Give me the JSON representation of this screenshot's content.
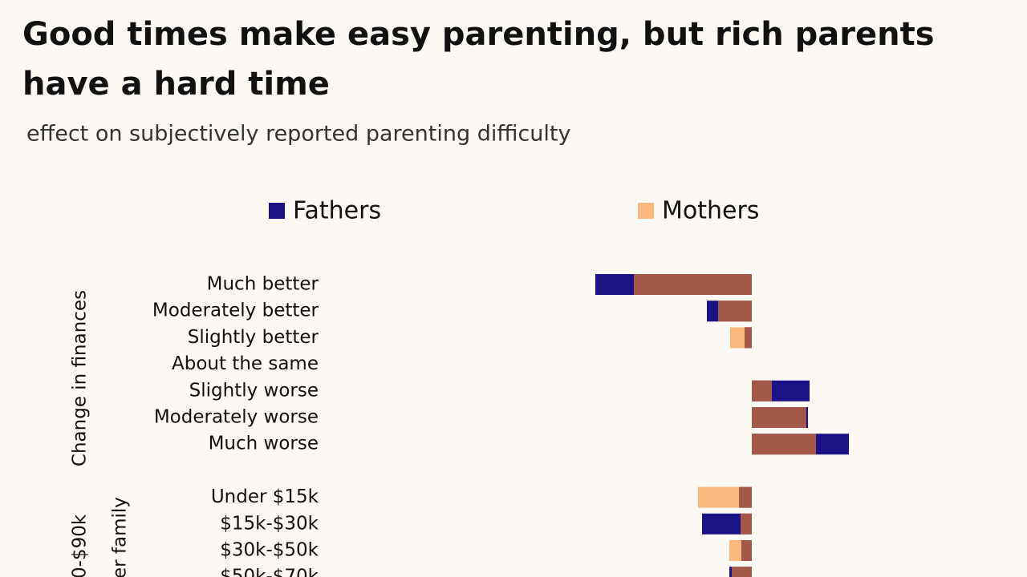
{
  "chart_data": {
    "type": "bar",
    "orientation": "horizontal",
    "title": "Good times make easy parenting, but rich parents have a hard time",
    "subtitle": "effect on subjectively reported parenting difficulty",
    "categories": [
      "Much better",
      "Moderately better",
      "Slightly better",
      "About the same",
      "Slightly worse",
      "Moderately worse",
      "Much worse",
      null,
      "Under $15k",
      "$15k-$30k",
      "$30k-$50k",
      "$50k-$70k"
    ],
    "group_labels": [
      "Change in finances",
      "er family",
      "0-$90k"
    ],
    "series": [
      {
        "name": "Fathers",
        "color": "#1b1385",
        "values": [
          -1.95,
          -0.56,
          -0.09,
          0,
          0.72,
          0.7,
          1.21,
          null,
          -0.16,
          -0.62,
          -0.13,
          -0.28
        ]
      },
      {
        "name": "Mothers",
        "color": "#fbb87f",
        "values": [
          -1.47,
          -0.42,
          -0.27,
          0,
          0.25,
          0.68,
          0.8,
          null,
          -0.67,
          -0.14,
          -0.28,
          -0.25
        ]
      }
    ],
    "overlap_color": "#a3584a",
    "xlim": [
      -2.5,
      2.5
    ],
    "legend": "top"
  }
}
